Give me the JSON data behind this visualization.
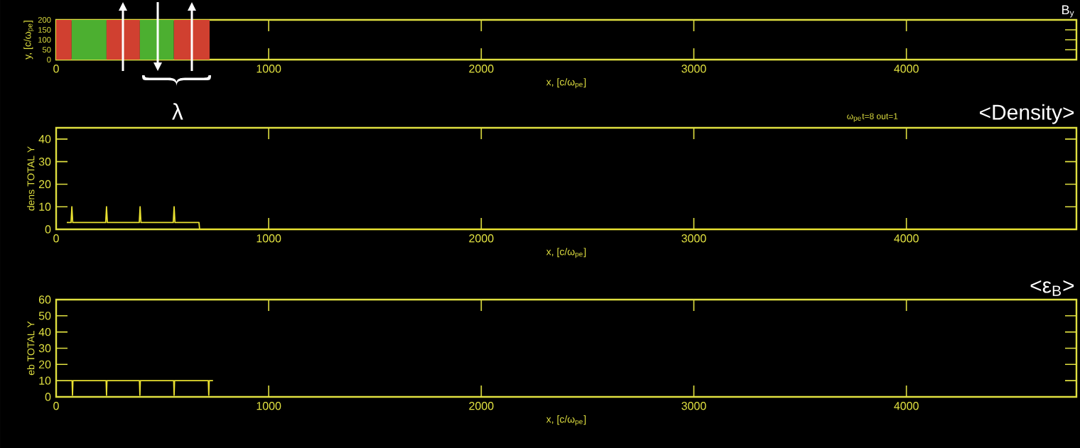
{
  "chart_data": [
    {
      "type": "line",
      "title": "B$_{y}$",
      "xlabel": "x, [c/ω$_{pe}$]",
      "ylabel": "y, [c/ω$_{pe}$]",
      "xlim": [
        0,
        4800
      ],
      "xticks": [
        0,
        1000,
        2000,
        3000,
        4000
      ],
      "ylim": [
        0,
        200
      ],
      "yticks": [
        0,
        50,
        100,
        150,
        200
      ],
      "bands": [
        {
          "axis": "x",
          "from": 0,
          "to": 73,
          "color": "#d04030"
        },
        {
          "axis": "x",
          "from": 73,
          "to": 237,
          "color": "#4caf30"
        },
        {
          "axis": "x",
          "from": 237,
          "to": 394,
          "color": "#d04030"
        },
        {
          "axis": "x",
          "from": 394,
          "to": 554,
          "color": "#4caf30"
        },
        {
          "axis": "x",
          "from": 554,
          "to": 722,
          "color": "#d04030"
        }
      ],
      "annotations": [
        "λ"
      ]
    },
    {
      "type": "line",
      "title": "<Density>",
      "xlabel": "x, [c/ω$_{pe}$]",
      "ylabel": "dens TOTAL Y",
      "xlim": [
        0,
        4800
      ],
      "xticks": [
        0,
        1000,
        2000,
        3000,
        4000
      ],
      "ylim": [
        0,
        45
      ],
      "yticks": [
        0,
        10,
        20,
        30,
        40
      ],
      "series": [
        {
          "color": "#e8e030",
          "x": [
            50,
            70,
            74,
            78,
            233,
            237,
            241,
            391,
            395,
            399,
            551,
            555,
            559,
            672,
            675,
            4800
          ],
          "values": [
            3,
            3,
            10,
            3,
            3,
            10,
            3,
            3,
            10,
            3,
            3,
            10,
            3,
            3,
            0,
            0
          ]
        }
      ],
      "annotations": [
        "ω$_{pe}$t=8 out=1"
      ]
    },
    {
      "type": "line",
      "title": "<ε$_{B}$>",
      "xlabel": "x, [c/ω$_{pe}$]",
      "ylabel": "eb TOTAL Y",
      "xlim": [
        0,
        4800
      ],
      "xticks": [
        0,
        1000,
        2000,
        3000,
        4000
      ],
      "ylim": [
        0,
        60
      ],
      "yticks": [
        0,
        10,
        20,
        30,
        40,
        50,
        60
      ],
      "series": [
        {
          "color": "#e8e030",
          "x": [
            53,
            75,
            77,
            79,
            235,
            237,
            239,
            392,
            394,
            396,
            553,
            555,
            557,
            716,
            718,
            720,
            738
          ],
          "values": [
            10,
            10,
            1,
            10,
            10,
            1,
            10,
            10,
            1,
            10,
            10,
            1,
            10,
            10,
            1,
            10,
            10
          ]
        }
      ]
    }
  ]
}
